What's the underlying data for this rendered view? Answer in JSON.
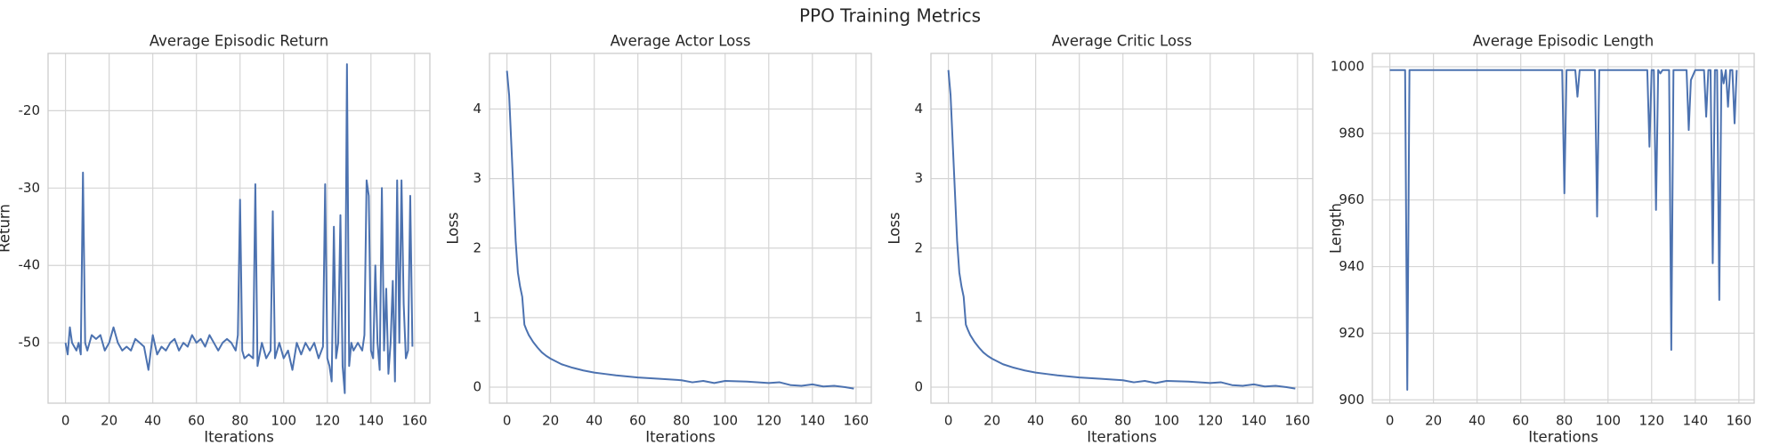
{
  "title": "PPO Training Metrics",
  "chart_data": [
    {
      "type": "line",
      "title": "Average Episodic Return",
      "xlabel": "Iterations",
      "ylabel": "Return",
      "color": "#4c72b0",
      "grid": true,
      "xlim": [
        -8,
        167
      ],
      "xticks": [
        0,
        20,
        40,
        60,
        80,
        100,
        120,
        140,
        160
      ],
      "ylim": [
        -57.8,
        -12.6
      ],
      "yticks": [
        -50,
        -40,
        -30,
        -20
      ],
      "x": [
        0,
        1,
        2,
        3,
        4,
        5,
        6,
        7,
        8,
        9,
        10,
        12,
        14,
        16,
        18,
        20,
        22,
        24,
        26,
        28,
        30,
        32,
        34,
        36,
        38,
        40,
        42,
        44,
        46,
        48,
        50,
        52,
        54,
        56,
        58,
        60,
        62,
        64,
        66,
        68,
        70,
        72,
        74,
        76,
        78,
        79,
        80,
        81,
        82,
        84,
        86,
        87,
        88,
        90,
        92,
        94,
        95,
        96,
        98,
        100,
        102,
        104,
        106,
        108,
        110,
        112,
        114,
        116,
        118,
        119,
        120,
        121,
        122,
        123,
        124,
        125,
        126,
        127,
        128,
        129,
        130,
        131,
        132,
        134,
        136,
        137,
        138,
        139,
        140,
        141,
        142,
        143,
        144,
        145,
        146,
        147,
        148,
        149,
        150,
        151,
        152,
        153,
        154,
        155,
        156,
        157,
        158,
        159
      ],
      "values": [
        -50,
        -51.5,
        -48,
        -50,
        -50.5,
        -51,
        -50,
        -51.5,
        -28,
        -50,
        -51,
        -49,
        -49.5,
        -49,
        -51,
        -50,
        -48,
        -50,
        -51,
        -50.5,
        -51,
        -49.5,
        -50,
        -50.5,
        -53.5,
        -49,
        -51.5,
        -50.5,
        -51,
        -50,
        -49.5,
        -51,
        -50,
        -50.5,
        -49,
        -50,
        -49.5,
        -50.5,
        -49,
        -50,
        -51,
        -50,
        -49.5,
        -50,
        -51,
        -49,
        -31.5,
        -51,
        -52,
        -51.5,
        -52,
        -29.5,
        -53,
        -50,
        -52,
        -51,
        -33,
        -52,
        -50,
        -52,
        -51,
        -53.5,
        -50,
        -51.5,
        -50,
        -51,
        -50,
        -52,
        -50.5,
        -29.5,
        -52,
        -53,
        -55,
        -35,
        -52,
        -50,
        -33.5,
        -53,
        -56.5,
        -14,
        -53,
        -50,
        -51,
        -50,
        -51,
        -49,
        -29,
        -31,
        -51,
        -52,
        -40,
        -50,
        -53.5,
        -30,
        -51,
        -43,
        -54,
        -50,
        -42,
        -55,
        -29,
        -50,
        -29,
        -45,
        -52,
        -51,
        -31,
        -50.5
      ]
    },
    {
      "type": "line",
      "title": "Average Actor Loss",
      "xlabel": "Iterations",
      "ylabel": "Loss",
      "color": "#4c72b0",
      "grid": true,
      "xlim": [
        -8,
        167
      ],
      "xticks": [
        0,
        20,
        40,
        60,
        80,
        100,
        120,
        140,
        160
      ],
      "ylim": [
        -0.23,
        4.8
      ],
      "yticks": [
        0,
        1,
        2,
        3,
        4
      ],
      "x": [
        0,
        1,
        2,
        3,
        4,
        5,
        6,
        7,
        8,
        9,
        10,
        12,
        14,
        16,
        18,
        20,
        25,
        30,
        35,
        40,
        45,
        50,
        60,
        70,
        80,
        85,
        90,
        95,
        100,
        110,
        120,
        125,
        130,
        135,
        140,
        145,
        150,
        155,
        159
      ],
      "values": [
        4.55,
        4.2,
        3.5,
        2.8,
        2.1,
        1.65,
        1.45,
        1.3,
        0.9,
        0.82,
        0.75,
        0.65,
        0.57,
        0.5,
        0.45,
        0.41,
        0.33,
        0.28,
        0.24,
        0.21,
        0.19,
        0.17,
        0.14,
        0.12,
        0.1,
        0.07,
        0.09,
        0.06,
        0.09,
        0.08,
        0.06,
        0.07,
        0.03,
        0.02,
        0.04,
        0.01,
        0.02,
        0.0,
        -0.02
      ]
    },
    {
      "type": "line",
      "title": "Average Critic Loss",
      "xlabel": "Iterations",
      "ylabel": "Loss",
      "color": "#4c72b0",
      "grid": true,
      "xlim": [
        -8,
        167
      ],
      "xticks": [
        0,
        20,
        40,
        60,
        80,
        100,
        120,
        140,
        160
      ],
      "ylim": [
        -0.23,
        4.8
      ],
      "yticks": [
        0,
        1,
        2,
        3,
        4
      ],
      "x": [
        0,
        1,
        2,
        3,
        4,
        5,
        6,
        7,
        8,
        9,
        10,
        12,
        14,
        16,
        18,
        20,
        25,
        30,
        35,
        40,
        45,
        50,
        60,
        70,
        80,
        85,
        90,
        95,
        100,
        110,
        120,
        125,
        130,
        135,
        140,
        145,
        150,
        155,
        159
      ],
      "values": [
        4.56,
        4.2,
        3.5,
        2.8,
        2.1,
        1.65,
        1.45,
        1.3,
        0.9,
        0.82,
        0.75,
        0.65,
        0.57,
        0.5,
        0.45,
        0.41,
        0.33,
        0.28,
        0.24,
        0.21,
        0.19,
        0.17,
        0.14,
        0.12,
        0.1,
        0.07,
        0.09,
        0.06,
        0.09,
        0.08,
        0.06,
        0.07,
        0.03,
        0.02,
        0.04,
        0.01,
        0.02,
        0.0,
        -0.02
      ]
    },
    {
      "type": "line",
      "title": "Average Episodic Length",
      "xlabel": "Iterations",
      "ylabel": "Length",
      "color": "#4c72b0",
      "grid": true,
      "xlim": [
        -8,
        167
      ],
      "xticks": [
        0,
        20,
        40,
        60,
        80,
        100,
        120,
        140,
        160
      ],
      "ylim": [
        899,
        1004
      ],
      "yticks": [
        900,
        920,
        940,
        960,
        980,
        1000
      ],
      "x": [
        0,
        7,
        8,
        9,
        79,
        80,
        81,
        85,
        86,
        87,
        94,
        95,
        96,
        118,
        119,
        120,
        121,
        122,
        123,
        124,
        125,
        128,
        129,
        130,
        136,
        137,
        138,
        140,
        144,
        145,
        146,
        147,
        148,
        149,
        150,
        151,
        152,
        153,
        154,
        155,
        156,
        157,
        158,
        159
      ],
      "values": [
        999,
        999,
        903,
        999,
        999,
        962,
        999,
        999,
        991,
        999,
        999,
        955,
        999,
        999,
        976,
        999,
        999,
        957,
        999,
        998,
        999,
        999,
        915,
        999,
        999,
        981,
        996,
        999,
        999,
        985,
        999,
        999,
        941,
        999,
        999,
        930,
        999,
        995,
        999,
        988,
        999,
        999,
        983,
        999
      ]
    }
  ]
}
